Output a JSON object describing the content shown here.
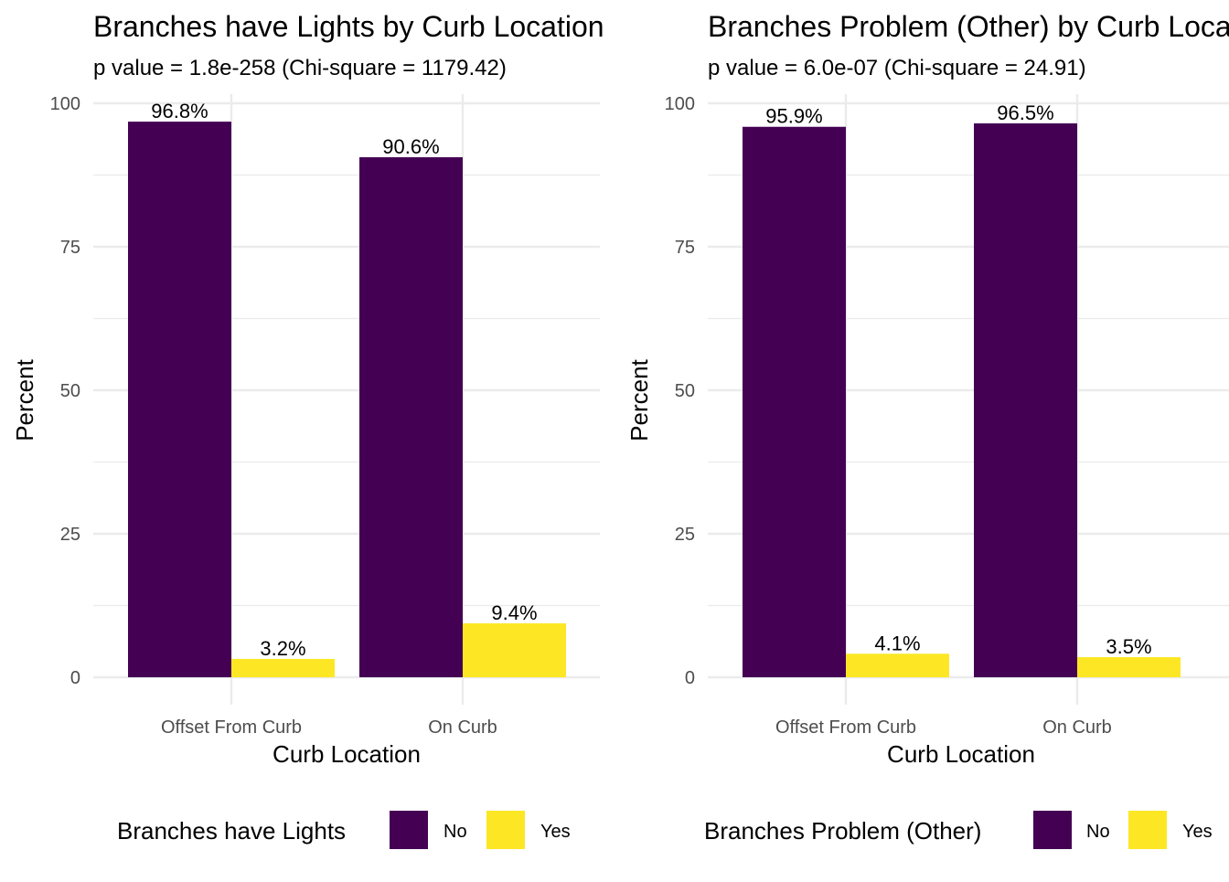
{
  "chart_data": [
    {
      "type": "bar",
      "title": "Branches have Lights by Curb Location",
      "subtitle": "p value = 1.8e-258 (Chi-square = 1179.42)",
      "xlabel": "Curb Location",
      "ylabel": "Percent",
      "ylim": [
        0,
        100
      ],
      "yticks": [
        "0",
        "25",
        "50",
        "75",
        "100"
      ],
      "categories": [
        "Offset From Curb",
        "On Curb"
      ],
      "series": [
        {
          "name": "No",
          "color": "#440154",
          "values": [
            96.8,
            90.6
          ],
          "labels": [
            "96.8%",
            "90.6%"
          ]
        },
        {
          "name": "Yes",
          "color": "#FDE725",
          "values": [
            3.2,
            9.4
          ],
          "labels": [
            "3.2%",
            "9.4%"
          ]
        }
      ],
      "legend": {
        "title": "Branches have Lights",
        "position": "bottom"
      },
      "grid": true
    },
    {
      "type": "bar",
      "title": "Branches Problem (Other) by Curb Location",
      "subtitle": "p value = 6.0e-07 (Chi-square = 24.91)",
      "xlabel": "Curb Location",
      "ylabel": "Percent",
      "ylim": [
        0,
        100
      ],
      "yticks": [
        "0",
        "25",
        "50",
        "75",
        "100"
      ],
      "categories": [
        "Offset From Curb",
        "On Curb"
      ],
      "series": [
        {
          "name": "No",
          "color": "#440154",
          "values": [
            95.9,
            96.5
          ],
          "labels": [
            "95.9%",
            "96.5%"
          ]
        },
        {
          "name": "Yes",
          "color": "#FDE725",
          "values": [
            4.1,
            3.5
          ],
          "labels": [
            "4.1%",
            "3.5%"
          ]
        }
      ],
      "legend": {
        "title": "Branches Problem (Other)",
        "position": "bottom"
      },
      "grid": true
    }
  ]
}
